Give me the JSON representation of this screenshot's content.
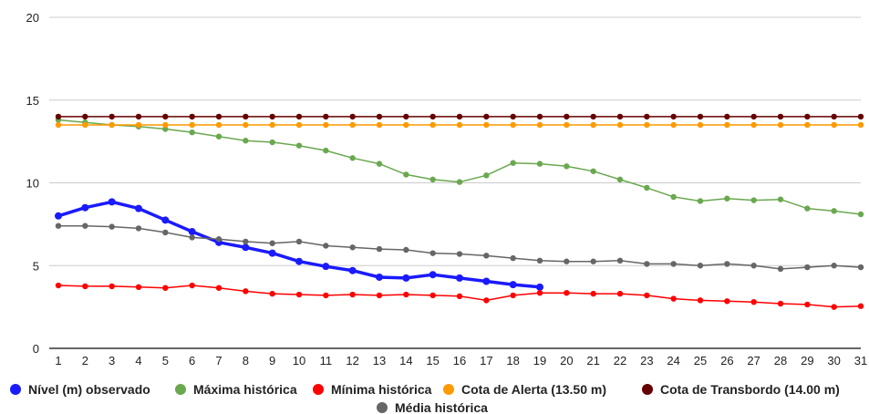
{
  "chart_data": {
    "type": "line",
    "categories": [
      1,
      2,
      3,
      4,
      5,
      6,
      7,
      8,
      9,
      10,
      11,
      12,
      13,
      14,
      15,
      16,
      17,
      18,
      19,
      20,
      21,
      22,
      23,
      24,
      25,
      26,
      27,
      28,
      29,
      30,
      31
    ],
    "ylim": [
      0,
      20
    ],
    "y_ticks": [
      0,
      5,
      10,
      15,
      20
    ],
    "grid": true,
    "legend_placement": "bottom",
    "series": [
      {
        "name": "Nível (m) observado",
        "color": "#1a1aff",
        "values": [
          8.0,
          8.5,
          8.85,
          8.45,
          7.75,
          7.05,
          6.4,
          6.1,
          5.75,
          5.25,
          4.95,
          4.7,
          4.3,
          4.25,
          4.45,
          4.25,
          4.05,
          3.85,
          3.7,
          null,
          null,
          null,
          null,
          null,
          null,
          null,
          null,
          null,
          null,
          null,
          null
        ]
      },
      {
        "name": "Máxima histórica",
        "color": "#6aa84f",
        "values": [
          13.8,
          13.65,
          13.5,
          13.4,
          13.25,
          13.05,
          12.8,
          12.55,
          12.45,
          12.25,
          11.95,
          11.5,
          11.15,
          10.5,
          10.2,
          10.05,
          10.45,
          11.2,
          11.15,
          11.0,
          10.7,
          10.2,
          9.7,
          9.15,
          8.9,
          9.05,
          8.95,
          9.0,
          8.45,
          8.3,
          8.1
        ]
      },
      {
        "name": "Mínima histórica",
        "color": "#ff0000",
        "values": [
          3.8,
          3.75,
          3.75,
          3.7,
          3.65,
          3.8,
          3.65,
          3.45,
          3.3,
          3.25,
          3.2,
          3.25,
          3.2,
          3.25,
          3.2,
          3.15,
          2.9,
          3.2,
          3.35,
          3.35,
          3.3,
          3.3,
          3.2,
          3.0,
          2.9,
          2.85,
          2.8,
          2.7,
          2.65,
          2.5,
          2.55
        ]
      },
      {
        "name": "Cota de Alerta (13.50 m)",
        "color": "#ff9900",
        "values": [
          13.5,
          13.5,
          13.5,
          13.5,
          13.5,
          13.5,
          13.5,
          13.5,
          13.5,
          13.5,
          13.5,
          13.5,
          13.5,
          13.5,
          13.5,
          13.5,
          13.5,
          13.5,
          13.5,
          13.5,
          13.5,
          13.5,
          13.5,
          13.5,
          13.5,
          13.5,
          13.5,
          13.5,
          13.5,
          13.5,
          13.5
        ]
      },
      {
        "name": "Cota de Transbordo (14.00 m)",
        "color": "#660000",
        "values": [
          14.0,
          14.0,
          14.0,
          14.0,
          14.0,
          14.0,
          14.0,
          14.0,
          14.0,
          14.0,
          14.0,
          14.0,
          14.0,
          14.0,
          14.0,
          14.0,
          14.0,
          14.0,
          14.0,
          14.0,
          14.0,
          14.0,
          14.0,
          14.0,
          14.0,
          14.0,
          14.0,
          14.0,
          14.0,
          14.0,
          14.0
        ]
      },
      {
        "name": "Média histórica",
        "color": "#666666",
        "values": [
          7.4,
          7.4,
          7.35,
          7.25,
          7.0,
          6.7,
          6.6,
          6.45,
          6.35,
          6.45,
          6.2,
          6.1,
          6.0,
          5.95,
          5.75,
          5.7,
          5.6,
          5.45,
          5.3,
          5.25,
          5.25,
          5.3,
          5.1,
          5.1,
          5.0,
          5.1,
          5.0,
          4.8,
          4.9,
          5.0,
          4.9
        ]
      }
    ]
  }
}
